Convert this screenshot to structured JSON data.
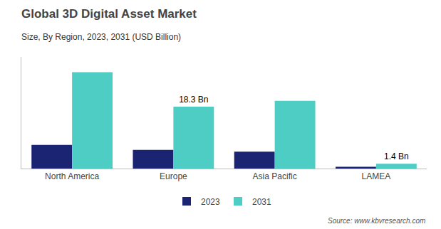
{
  "chart_data": {
    "type": "bar",
    "title": "Global 3D Digital Asset Market",
    "subtitle": "Size, By Region, 2023, 2031 (USD Billion)",
    "categories": [
      "North America",
      "Europe",
      "Asia Pacific",
      "LAMEA"
    ],
    "series": [
      {
        "name": "2023",
        "color": "#1a2472",
        "values": [
          7.0,
          5.5,
          5.0,
          0.5
        ]
      },
      {
        "name": "2031",
        "color": "#4ecdc4",
        "values": [
          28.5,
          18.3,
          20.0,
          1.4
        ]
      }
    ],
    "ylim": [
      0,
      33
    ],
    "tick_labels": "x",
    "grid": false,
    "legend": "bottom",
    "annotations": [
      {
        "category": "Europe",
        "series": "2031",
        "text": "18.3 Bn"
      },
      {
        "category": "LAMEA",
        "series": "2031",
        "text": "1.4 Bn"
      }
    ],
    "source": "Source: www.kbvresearch.com"
  }
}
